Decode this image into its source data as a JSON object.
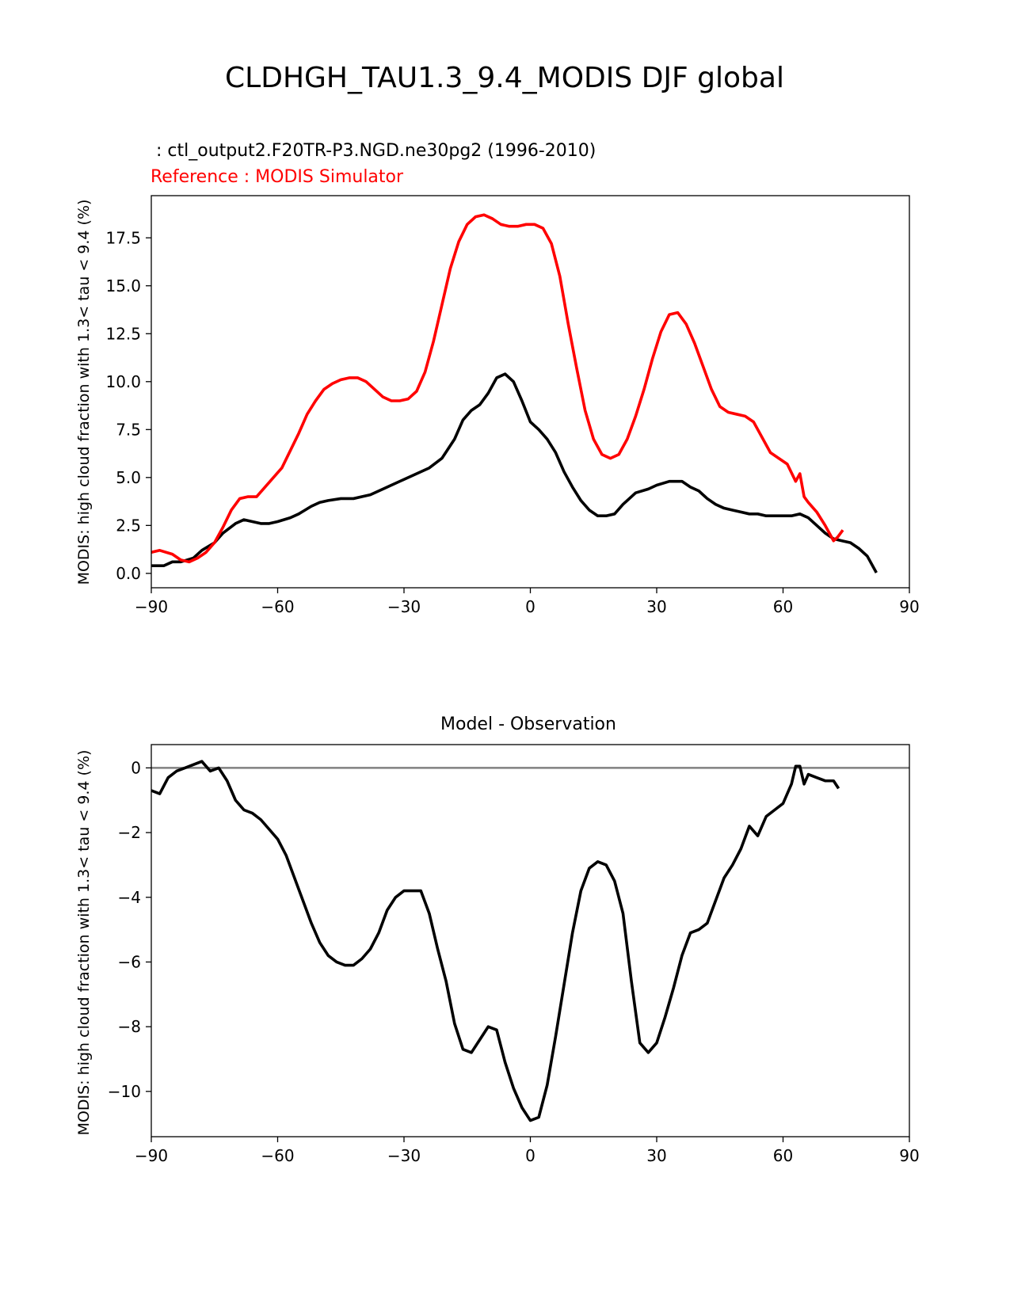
{
  "figure": {
    "title": "CLDHGH_TAU1.3_9.4_MODIS DJF global"
  },
  "chart_data": [
    {
      "type": "line",
      "subtitle": " : ctl_output2.F20TR-P3.NGD.ne30pg2 (1996-2010)",
      "reference_label": "Reference : MODIS Simulator",
      "xlabel": "",
      "ylabel": "MODIS: high cloud fraction with 1.3< tau < 9.4 (%)",
      "xlim": [
        -90,
        90
      ],
      "ylim": [
        -0.75,
        19.7
      ],
      "xticks": [
        -90,
        -60,
        -30,
        0,
        30,
        60,
        90
      ],
      "xtick_labels": [
        "−90",
        "−60",
        "−30",
        "0",
        "30",
        "60",
        "90"
      ],
      "yticks": [
        0,
        2.5,
        5,
        7.5,
        10,
        12.5,
        15,
        17.5
      ],
      "ytick_labels": [
        "0.0",
        "2.5",
        "5.0",
        "7.5",
        "10.0",
        "12.5",
        "15.0",
        "17.5"
      ],
      "grid": false,
      "series": [
        {
          "role": "model",
          "color": "#000000",
          "x": [
            -90,
            -87,
            -85,
            -83,
            -80,
            -78,
            -75,
            -73,
            -70,
            -68,
            -66,
            -64,
            -62,
            -60,
            -57,
            -55,
            -52,
            -50,
            -48,
            -45,
            -42,
            -40,
            -38,
            -35,
            -33,
            -30,
            -27,
            -24,
            -21,
            -18,
            -16,
            -14,
            -12,
            -10,
            -8,
            -6,
            -4,
            -2,
            0,
            2,
            4,
            6,
            8,
            10,
            12,
            14,
            16,
            18,
            20,
            22,
            25,
            28,
            30,
            33,
            36,
            38,
            40,
            42,
            44,
            46,
            48,
            50,
            52,
            54,
            56,
            58,
            60,
            62,
            64,
            66,
            68,
            70,
            72,
            74,
            76,
            78,
            80,
            82
          ],
          "y": [
            0.4,
            0.4,
            0.6,
            0.6,
            0.8,
            1.2,
            1.6,
            2.1,
            2.6,
            2.8,
            2.7,
            2.6,
            2.6,
            2.7,
            2.9,
            3.1,
            3.5,
            3.7,
            3.8,
            3.9,
            3.9,
            4.0,
            4.1,
            4.4,
            4.6,
            4.9,
            5.2,
            5.5,
            6.0,
            7.0,
            8.0,
            8.5,
            8.8,
            9.4,
            10.2,
            10.4,
            10.0,
            9.0,
            7.9,
            7.5,
            7.0,
            6.3,
            5.3,
            4.5,
            3.8,
            3.3,
            3.0,
            3.0,
            3.1,
            3.6,
            4.2,
            4.4,
            4.6,
            4.8,
            4.8,
            4.5,
            4.3,
            3.9,
            3.6,
            3.4,
            3.3,
            3.2,
            3.1,
            3.1,
            3.0,
            3.0,
            3.0,
            3.0,
            3.1,
            2.9,
            2.5,
            2.1,
            1.8,
            1.7,
            1.6,
            1.3,
            0.9,
            0.1
          ]
        },
        {
          "role": "reference",
          "color": "#ff0000",
          "x": [
            -90,
            -88,
            -85,
            -83,
            -81,
            -79,
            -77,
            -75,
            -73,
            -71,
            -69,
            -67,
            -65,
            -63,
            -61,
            -59,
            -57,
            -55,
            -53,
            -51,
            -49,
            -47,
            -45,
            -43,
            -41,
            -39,
            -37,
            -35,
            -33,
            -31,
            -29,
            -27,
            -25,
            -23,
            -21,
            -19,
            -17,
            -15,
            -13,
            -11,
            -9,
            -7,
            -5,
            -3,
            -1,
            1,
            3,
            5,
            7,
            9,
            11,
            13,
            15,
            17,
            19,
            21,
            23,
            25,
            27,
            29,
            31,
            33,
            35,
            37,
            39,
            41,
            43,
            45,
            47,
            49,
            51,
            53,
            55,
            57,
            59,
            61,
            63,
            64,
            65,
            66,
            68,
            70,
            72,
            73,
            74
          ],
          "y": [
            1.1,
            1.2,
            1.0,
            0.7,
            0.6,
            0.8,
            1.1,
            1.6,
            2.4,
            3.3,
            3.9,
            4.0,
            4.0,
            4.5,
            5.0,
            5.5,
            6.4,
            7.3,
            8.3,
            9.0,
            9.6,
            9.9,
            10.1,
            10.2,
            10.2,
            10.0,
            9.6,
            9.2,
            9.0,
            9.0,
            9.1,
            9.5,
            10.5,
            12.1,
            14.0,
            15.9,
            17.3,
            18.2,
            18.6,
            18.7,
            18.5,
            18.2,
            18.1,
            18.1,
            18.2,
            18.2,
            18.0,
            17.2,
            15.5,
            13.0,
            10.7,
            8.5,
            7.0,
            6.2,
            6.0,
            6.2,
            7.0,
            8.2,
            9.6,
            11.2,
            12.6,
            13.5,
            13.6,
            13.0,
            12.0,
            10.8,
            9.6,
            8.7,
            8.4,
            8.3,
            8.2,
            7.9,
            7.1,
            6.3,
            6.0,
            5.7,
            4.8,
            5.2,
            4.0,
            3.7,
            3.2,
            2.5,
            1.7,
            1.9,
            2.2
          ]
        }
      ]
    },
    {
      "type": "line",
      "title": "Model - Observation",
      "xlabel": "",
      "ylabel": "MODIS: high cloud fraction with 1.3< tau < 9.4 (%)",
      "xlim": [
        -90,
        90
      ],
      "ylim": [
        -11.4,
        0.72
      ],
      "xticks": [
        -90,
        -60,
        -30,
        0,
        30,
        60,
        90
      ],
      "xtick_labels": [
        "−90",
        "−60",
        "−30",
        "0",
        "30",
        "60",
        "90"
      ],
      "yticks": [
        0,
        -2,
        -4,
        -6,
        -8,
        -10
      ],
      "ytick_labels": [
        "0",
        "−2",
        "−4",
        "−6",
        "−8",
        "−10"
      ],
      "grid": false,
      "zero_line": {
        "y": 0,
        "color": "#808080"
      },
      "series": [
        {
          "role": "difference",
          "color": "#000000",
          "x": [
            -90,
            -88,
            -86,
            -84,
            -82,
            -80,
            -78,
            -76,
            -74,
            -72,
            -70,
            -68,
            -66,
            -64,
            -62,
            -60,
            -58,
            -56,
            -54,
            -52,
            -50,
            -48,
            -46,
            -44,
            -42,
            -40,
            -38,
            -36,
            -34,
            -32,
            -30,
            -28,
            -26,
            -24,
            -22,
            -20,
            -18,
            -16,
            -14,
            -12,
            -10,
            -8,
            -6,
            -4,
            -2,
            0,
            2,
            4,
            6,
            8,
            10,
            12,
            14,
            16,
            18,
            20,
            22,
            24,
            26,
            28,
            30,
            32,
            34,
            36,
            38,
            40,
            42,
            44,
            46,
            48,
            50,
            52,
            54,
            56,
            58,
            60,
            62,
            63,
            64,
            65,
            66,
            68,
            70,
            72,
            73
          ],
          "y": [
            -0.7,
            -0.8,
            -0.3,
            -0.1,
            0.0,
            0.1,
            0.2,
            -0.1,
            0.0,
            -0.4,
            -1.0,
            -1.3,
            -1.4,
            -1.6,
            -1.9,
            -2.2,
            -2.7,
            -3.4,
            -4.1,
            -4.8,
            -5.4,
            -5.8,
            -6.0,
            -6.1,
            -6.1,
            -5.9,
            -5.6,
            -5.1,
            -4.4,
            -4.0,
            -3.8,
            -3.8,
            -3.8,
            -4.5,
            -5.6,
            -6.6,
            -7.9,
            -8.7,
            -8.8,
            -8.4,
            -8.0,
            -8.1,
            -9.1,
            -9.9,
            -10.5,
            -10.9,
            -10.8,
            -9.8,
            -8.3,
            -6.7,
            -5.1,
            -3.8,
            -3.1,
            -2.9,
            -3.0,
            -3.5,
            -4.5,
            -6.6,
            -8.5,
            -8.8,
            -8.5,
            -7.7,
            -6.8,
            -5.8,
            -5.1,
            -5.0,
            -4.8,
            -4.1,
            -3.4,
            -3.0,
            -2.5,
            -1.8,
            -2.1,
            -1.5,
            -1.3,
            -1.1,
            -0.5,
            0.05,
            0.05,
            -0.5,
            -0.2,
            -0.3,
            -0.4,
            -0.4,
            -0.6
          ]
        }
      ]
    }
  ]
}
